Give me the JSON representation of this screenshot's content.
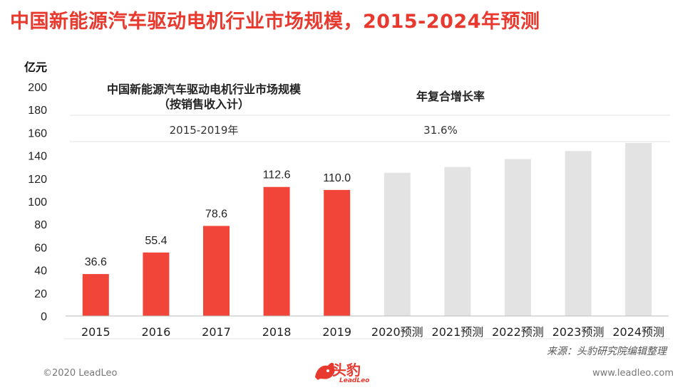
{
  "page": {
    "title": "中国新能源汽车驱动电机行业市场规模，2015-2024年预测",
    "source": "来源：头豹研究院编辑整理",
    "copyright": "©2020 LeadLeo",
    "website": "www.leadleo.com",
    "logo_text": "头豹",
    "logo_sub": "LeadLeo"
  },
  "chart_data": {
    "type": "bar",
    "ylabel": "亿元",
    "ylim": [
      0,
      200
    ],
    "yticks": [
      0,
      20,
      40,
      60,
      80,
      100,
      120,
      140,
      160,
      180,
      200
    ],
    "categories": [
      "2015",
      "2016",
      "2017",
      "2018",
      "2019",
      "2020预测",
      "2021预测",
      "2022预测",
      "2023预测",
      "2024预测"
    ],
    "values": [
      36.6,
      55.4,
      78.6,
      112.6,
      110.0,
      125.0,
      130.0,
      137.0,
      144.0,
      151.0
    ],
    "data_labels": [
      "36.6",
      "55.4",
      "78.6",
      "112.6",
      "110.0",
      "",
      "",
      "",
      "",
      ""
    ],
    "actual_color": "#f2453a",
    "forecast_color": "#e3e3e3",
    "actual_count": 5,
    "table": {
      "header_left": "中国新能源汽车驱动电机行业市场规模",
      "header_left_sub": "（按销售收入计）",
      "header_right": "年复合增长率",
      "period": "2015-2019年",
      "cagr": "31.6%"
    }
  }
}
